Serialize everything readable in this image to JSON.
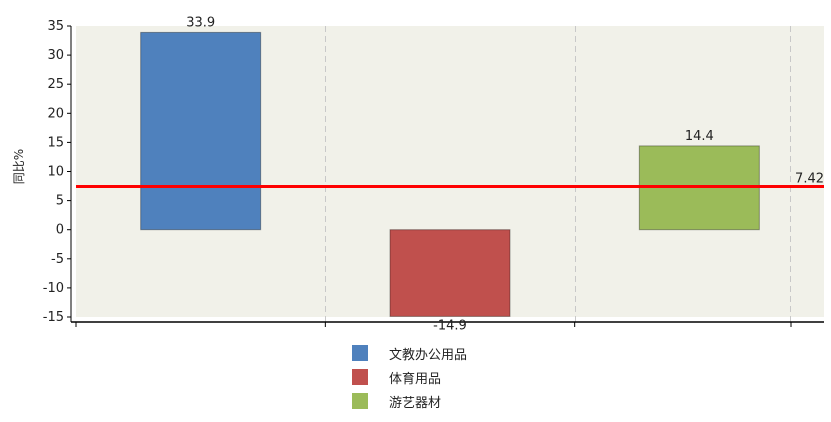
{
  "chart_data": {
    "type": "bar",
    "categories": [
      "文教办公用品",
      "体育用品",
      "游艺器材"
    ],
    "values": [
      33.9,
      -14.9,
      14.4
    ],
    "data_labels": [
      "33.9",
      "-14.9",
      "14.4"
    ],
    "colors": [
      "#4f81bd",
      "#c0504d",
      "#9bbb59"
    ],
    "title": "",
    "xlabel": "",
    "ylabel": "同比%",
    "ylim": [
      -15,
      35
    ],
    "yticks": [
      "35",
      "30",
      "25",
      "20",
      "15",
      "10",
      "5",
      "0",
      "-5",
      "-10",
      "-15"
    ],
    "reference_line": {
      "value": 7.42,
      "label": "7.42",
      "color": "#ff0000"
    },
    "grid": "vertical dashed",
    "legend": {
      "position": "bottom",
      "entries": [
        "文教办公用品",
        "体育用品",
        "游艺器材"
      ]
    }
  }
}
